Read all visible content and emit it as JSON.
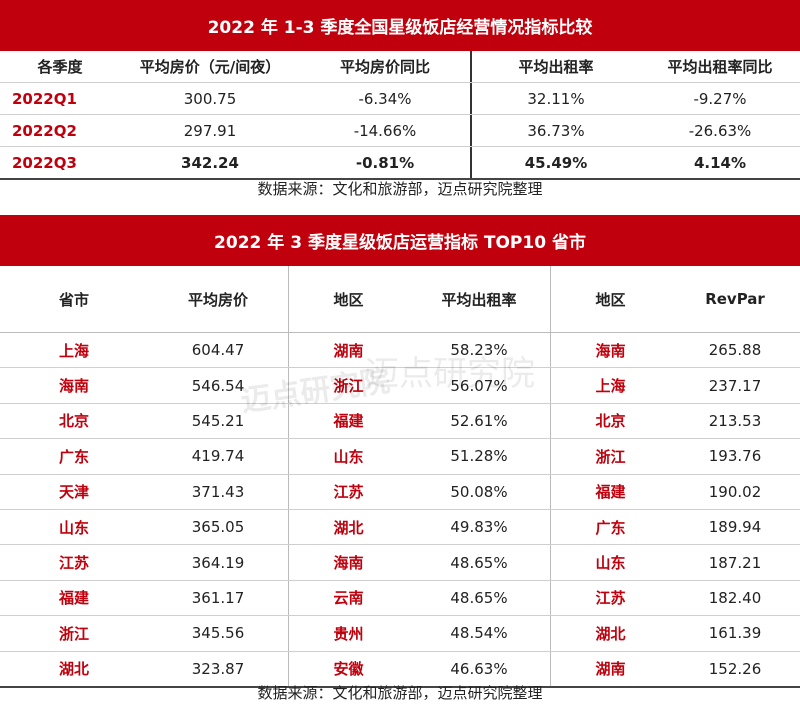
{
  "table1": {
    "title": "2022 年 1-3 季度全国星级饭店经营情况指标比较",
    "headers": [
      "各季度",
      "平均房价（元/间夜）",
      "平均房价同比",
      "平均出租率",
      "平均出租率同比"
    ],
    "rows": [
      [
        "2022Q1",
        "300.75",
        "-6.34%",
        "32.11%",
        "-9.27%"
      ],
      [
        "2022Q2",
        "297.91",
        "-14.66%",
        "36.73%",
        "-26.63%"
      ],
      [
        "2022Q3",
        "342.24",
        "-0.81%",
        "45.49%",
        "4.14%"
      ]
    ],
    "source": "数据来源：文化和旅游部，迈点研究院整理"
  },
  "table2": {
    "title": "2022 年 3 季度星级饭店运营指标 TOP10 省市",
    "headers": [
      "省市",
      "平均房价",
      "地区",
      "平均出租率",
      "地区",
      "RevPar"
    ],
    "rows": [
      [
        "上海",
        "604.47",
        "湖南",
        "58.23%",
        "海南",
        "265.88"
      ],
      [
        "海南",
        "546.54",
        "浙江",
        "56.07%",
        "上海",
        "237.17"
      ],
      [
        "北京",
        "545.21",
        "福建",
        "52.61%",
        "北京",
        "213.53"
      ],
      [
        "广东",
        "419.74",
        "山东",
        "51.28%",
        "浙江",
        "193.76"
      ],
      [
        "天津",
        "371.43",
        "江苏",
        "50.08%",
        "福建",
        "190.02"
      ],
      [
        "山东",
        "365.05",
        "湖北",
        "49.83%",
        "广东",
        "189.94"
      ],
      [
        "江苏",
        "364.19",
        "海南",
        "48.65%",
        "山东",
        "187.21"
      ],
      [
        "福建",
        "361.17",
        "云南",
        "48.65%",
        "江苏",
        "182.40"
      ],
      [
        "浙江",
        "345.56",
        "贵州",
        "48.54%",
        "湖北",
        "161.39"
      ],
      [
        "湖北",
        "323.87",
        "安徽",
        "46.63%",
        "湖南",
        "152.26"
      ]
    ],
    "source": "数据来源：文化和旅游部，迈点研究院整理",
    "watermark_small": "迈点研究院",
    "watermark_large": "迈点研究院"
  },
  "colors": {
    "accent": "#c0000c",
    "header_text": "#ffffff",
    "body_text": "#222222"
  }
}
